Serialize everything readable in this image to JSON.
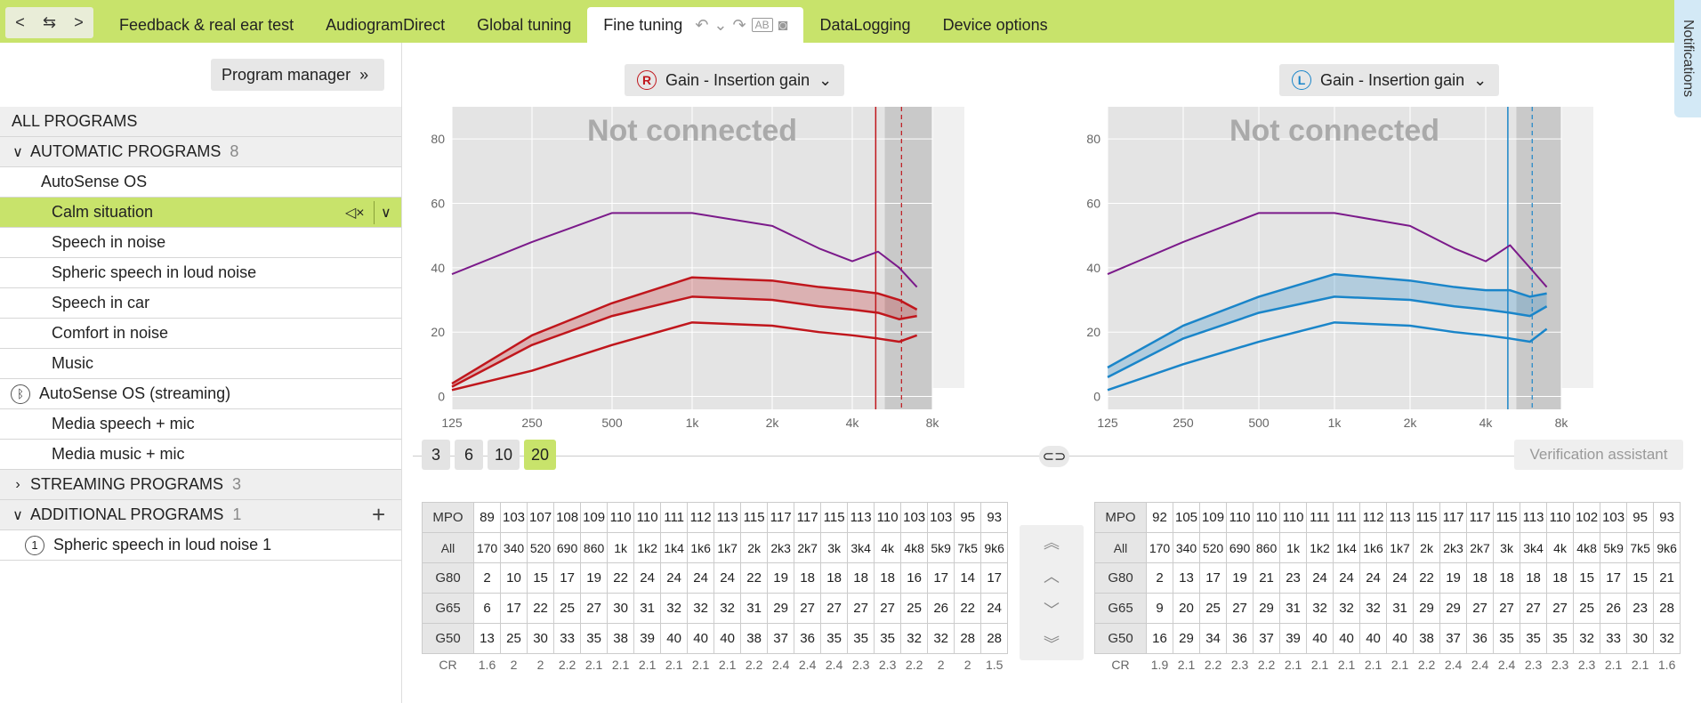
{
  "nav": {
    "back": "<",
    "swap": "⇆",
    "forward": ">"
  },
  "tabs": [
    {
      "label": "Feedback & real ear test"
    },
    {
      "label": "AudiogramDirect"
    },
    {
      "label": "Global tuning"
    },
    {
      "label": "Fine tuning",
      "active": true
    },
    {
      "label": "DataLogging"
    },
    {
      "label": "Device options"
    }
  ],
  "tab_tools": {
    "ab": "AB"
  },
  "notifications": "Notifications",
  "sidebar": {
    "program_manager": "Program manager",
    "all_programs": "ALL PROGRAMS",
    "automatic": {
      "label": "AUTOMATIC PROGRAMS",
      "count": "8"
    },
    "autosense": "AutoSense OS",
    "items": [
      "Calm situation",
      "Speech in noise",
      "Spheric speech in loud noise",
      "Speech in car",
      "Comfort in noise",
      "Music"
    ],
    "autosense_streaming": "AutoSense OS (streaming)",
    "stream_items": [
      "Media speech + mic",
      "Media music + mic"
    ],
    "streaming": {
      "label": "STREAMING PROGRAMS",
      "count": "3"
    },
    "additional": {
      "label": "ADDITIONAL PROGRAMS",
      "count": "1"
    },
    "additional_items": [
      {
        "num": "1",
        "label": "Spheric speech in loud noise 1"
      }
    ]
  },
  "right_chart": {
    "side": "R",
    "dropdown": "Gain - Insertion gain",
    "status": "Not connected",
    "color": "#c0161c"
  },
  "left_chart": {
    "side": "L",
    "dropdown": "Gain - Insertion gain",
    "status": "Not connected",
    "color": "#1a85c9"
  },
  "chart_data": [
    {
      "type": "line",
      "title": "Gain - Insertion gain (R)",
      "x_ticks": [
        "125",
        "250",
        "500",
        "1k",
        "2k",
        "4k",
        "8k"
      ],
      "y_ticks": [
        "0",
        "20",
        "40",
        "60",
        "80"
      ],
      "ylim": [
        0,
        90
      ],
      "series": [
        {
          "name": "MPO",
          "x": [
            125,
            250,
            500,
            1000,
            2000,
            3000,
            4000,
            5000,
            6000,
            7000
          ],
          "values": [
            38,
            48,
            57,
            57,
            53,
            46,
            42,
            45,
            40,
            34
          ]
        },
        {
          "name": "G50",
          "x": [
            125,
            250,
            500,
            1000,
            2000,
            3000,
            4000,
            5000,
            6000,
            7000
          ],
          "values": [
            4,
            19,
            29,
            37,
            36,
            34,
            33,
            32,
            30,
            27
          ]
        },
        {
          "name": "G65",
          "x": [
            125,
            250,
            500,
            1000,
            2000,
            3000,
            4000,
            5000,
            6000,
            7000
          ],
          "values": [
            3,
            16,
            25,
            31,
            30,
            28,
            27,
            26,
            24,
            25
          ]
        },
        {
          "name": "G80",
          "x": [
            125,
            250,
            500,
            1000,
            2000,
            3000,
            4000,
            5000,
            6000,
            7000
          ],
          "values": [
            2,
            8,
            16,
            23,
            22,
            20,
            19,
            18,
            17,
            19
          ]
        }
      ]
    },
    {
      "type": "line",
      "title": "Gain - Insertion gain (L)",
      "x_ticks": [
        "125",
        "250",
        "500",
        "1k",
        "2k",
        "4k",
        "8k"
      ],
      "y_ticks": [
        "0",
        "20",
        "40",
        "60",
        "80"
      ],
      "ylim": [
        0,
        90
      ],
      "series": [
        {
          "name": "MPO",
          "x": [
            125,
            250,
            500,
            1000,
            2000,
            3000,
            4000,
            5000,
            6000,
            7000
          ],
          "values": [
            38,
            48,
            57,
            57,
            53,
            46,
            42,
            47,
            40,
            34
          ]
        },
        {
          "name": "G50",
          "x": [
            125,
            250,
            500,
            1000,
            2000,
            3000,
            4000,
            5000,
            6000,
            7000
          ],
          "values": [
            9,
            22,
            31,
            38,
            36,
            34,
            33,
            33,
            31,
            32
          ]
        },
        {
          "name": "G65",
          "x": [
            125,
            250,
            500,
            1000,
            2000,
            3000,
            4000,
            5000,
            6000,
            7000
          ],
          "values": [
            6,
            18,
            26,
            31,
            30,
            28,
            27,
            26,
            25,
            28
          ]
        },
        {
          "name": "G80",
          "x": [
            125,
            250,
            500,
            1000,
            2000,
            3000,
            4000,
            5000,
            6000,
            7000
          ],
          "values": [
            2,
            10,
            17,
            23,
            22,
            20,
            19,
            18,
            17,
            21
          ]
        }
      ]
    }
  ],
  "band_buttons": [
    "3",
    "6",
    "10",
    "20"
  ],
  "verification": "Verification assistant",
  "table_right": {
    "MPO": [
      "89",
      "103",
      "107",
      "108",
      "109",
      "110",
      "110",
      "111",
      "112",
      "113",
      "115",
      "117",
      "117",
      "115",
      "113",
      "110",
      "103",
      "103",
      "95",
      "93"
    ],
    "All": [
      "170",
      "340",
      "520",
      "690",
      "860",
      "1k",
      "1k2",
      "1k4",
      "1k6",
      "1k7",
      "2k",
      "2k3",
      "2k7",
      "3k",
      "3k4",
      "4k",
      "4k8",
      "5k9",
      "7k5",
      "9k6"
    ],
    "G80": [
      "2",
      "10",
      "15",
      "17",
      "19",
      "22",
      "24",
      "24",
      "24",
      "24",
      "22",
      "19",
      "18",
      "18",
      "18",
      "18",
      "16",
      "17",
      "14",
      "17"
    ],
    "G65": [
      "6",
      "17",
      "22",
      "25",
      "27",
      "30",
      "31",
      "32",
      "32",
      "32",
      "31",
      "29",
      "27",
      "27",
      "27",
      "27",
      "25",
      "26",
      "22",
      "24"
    ],
    "G50": [
      "13",
      "25",
      "30",
      "33",
      "35",
      "38",
      "39",
      "40",
      "40",
      "40",
      "38",
      "37",
      "36",
      "35",
      "35",
      "35",
      "32",
      "32",
      "28",
      "28"
    ],
    "CR": [
      "1.6",
      "2",
      "2",
      "2.2",
      "2.1",
      "2.1",
      "2.1",
      "2.1",
      "2.1",
      "2.1",
      "2.2",
      "2.4",
      "2.4",
      "2.4",
      "2.3",
      "2.3",
      "2.2",
      "2",
      "2",
      "1.5"
    ]
  },
  "table_left": {
    "MPO": [
      "92",
      "105",
      "109",
      "110",
      "110",
      "110",
      "111",
      "111",
      "112",
      "113",
      "115",
      "117",
      "117",
      "115",
      "113",
      "110",
      "102",
      "103",
      "95",
      "93"
    ],
    "All": [
      "170",
      "340",
      "520",
      "690",
      "860",
      "1k",
      "1k2",
      "1k4",
      "1k6",
      "1k7",
      "2k",
      "2k3",
      "2k7",
      "3k",
      "3k4",
      "4k",
      "4k8",
      "5k9",
      "7k5",
      "9k6"
    ],
    "G80": [
      "2",
      "13",
      "17",
      "19",
      "21",
      "23",
      "24",
      "24",
      "24",
      "24",
      "22",
      "19",
      "18",
      "18",
      "18",
      "18",
      "15",
      "17",
      "15",
      "21"
    ],
    "G65": [
      "9",
      "20",
      "25",
      "27",
      "29",
      "31",
      "32",
      "32",
      "32",
      "31",
      "29",
      "29",
      "27",
      "27",
      "27",
      "27",
      "25",
      "26",
      "23",
      "28"
    ],
    "G50": [
      "16",
      "29",
      "34",
      "36",
      "37",
      "39",
      "40",
      "40",
      "40",
      "40",
      "38",
      "37",
      "36",
      "35",
      "35",
      "35",
      "32",
      "33",
      "30",
      "32"
    ],
    "CR": [
      "1.9",
      "2.1",
      "2.2",
      "2.3",
      "2.2",
      "2.1",
      "2.1",
      "2.1",
      "2.1",
      "2.1",
      "2.2",
      "2.4",
      "2.4",
      "2.4",
      "2.3",
      "2.3",
      "2.3",
      "2.1",
      "2.1",
      "1.6"
    ]
  },
  "row_labels": [
    "MPO",
    "All",
    "G80",
    "G65",
    "G50",
    "CR"
  ]
}
